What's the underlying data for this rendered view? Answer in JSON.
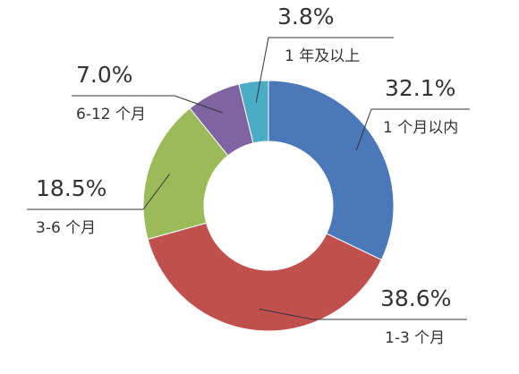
{
  "chart_data": {
    "type": "donut",
    "categories": [
      "1 个月以内",
      "1-3 个月",
      "3-6 个月",
      "6-12 个月",
      "1 年及以上"
    ],
    "values": [
      32.1,
      38.6,
      18.5,
      7.0,
      3.8
    ],
    "value_labels": [
      "32.1%",
      "38.6%",
      "18.5%",
      "7.0%",
      "3.8%"
    ],
    "colors": [
      "#4a78b8",
      "#c0504d",
      "#9bbb59",
      "#8064a2",
      "#4bacc6"
    ]
  }
}
